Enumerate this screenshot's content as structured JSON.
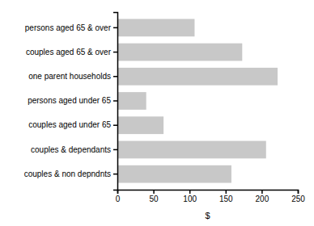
{
  "chart_data": {
    "type": "bar",
    "orientation": "horizontal",
    "categories": [
      "persons aged 65 & over",
      "couples aged 65 & over",
      "one parent households",
      "persons aged under 65",
      "couples aged under 65",
      "couples & dependants",
      "couples & non depndnts"
    ],
    "values": [
      107,
      173,
      222,
      40,
      64,
      206,
      158
    ],
    "color": "#c8c8c8",
    "xlim": [
      0,
      250
    ],
    "xticks": [
      0,
      50,
      100,
      150,
      200,
      250
    ],
    "xlabel": "$"
  }
}
